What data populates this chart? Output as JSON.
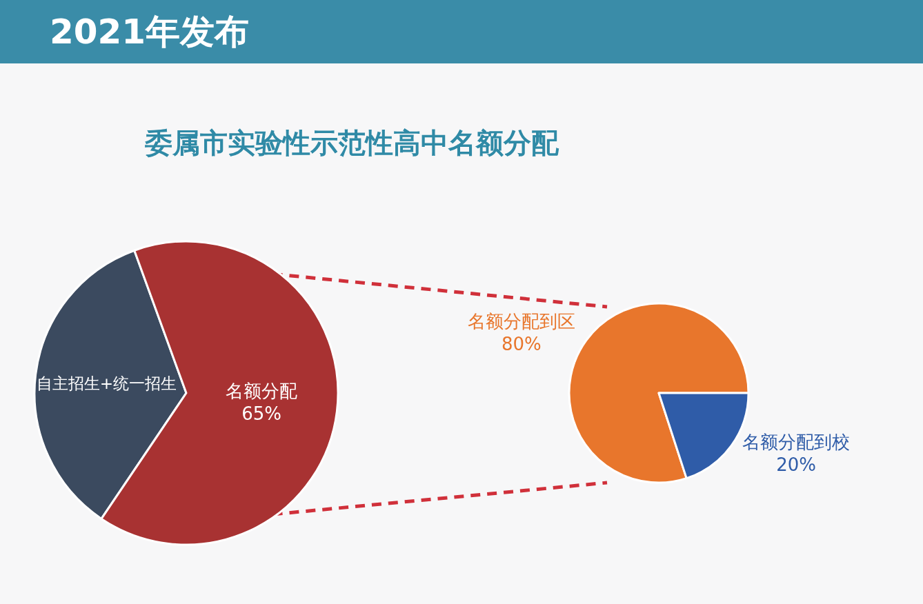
{
  "chart_data": [
    {
      "type": "pie",
      "title": "2021年发布",
      "subtitle": "委属市实验性示范性高中名额分配",
      "categories": [
        "自主招生+统一招生",
        "名额分配"
      ],
      "values": [
        35,
        65
      ],
      "colors": [
        "#3b4a5f",
        "#a83232"
      ],
      "value_labels": [
        null,
        "65%"
      ]
    },
    {
      "type": "pie",
      "categories": [
        "名额分配到区",
        "名额分配到校"
      ],
      "values": [
        80,
        20
      ],
      "colors": [
        "#e8762c",
        "#2f5ca8"
      ],
      "value_labels": [
        "80%",
        "20%"
      ]
    }
  ]
}
